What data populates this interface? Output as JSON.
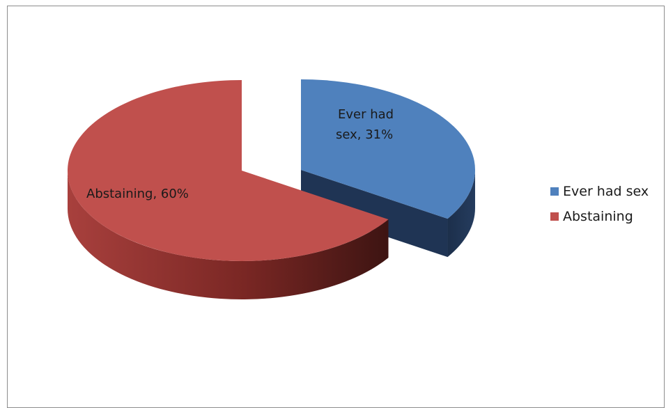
{
  "chart_data": {
    "type": "pie",
    "style": "3d-exploded",
    "categories": [
      "Ever had sex",
      "Abstaining"
    ],
    "values": [
      31,
      60
    ],
    "unit": "%",
    "data_labels": [
      "Ever had sex, 31%",
      "Abstaining, 60%"
    ],
    "colors": {
      "Ever had sex": {
        "top": "#4f81bd",
        "side": "#1f3454"
      },
      "Abstaining": {
        "top": "#c0504d",
        "side": "#8b2f2c"
      }
    },
    "legend": {
      "position": "right",
      "entries": [
        "Ever had sex",
        "Abstaining"
      ]
    },
    "title": ""
  }
}
